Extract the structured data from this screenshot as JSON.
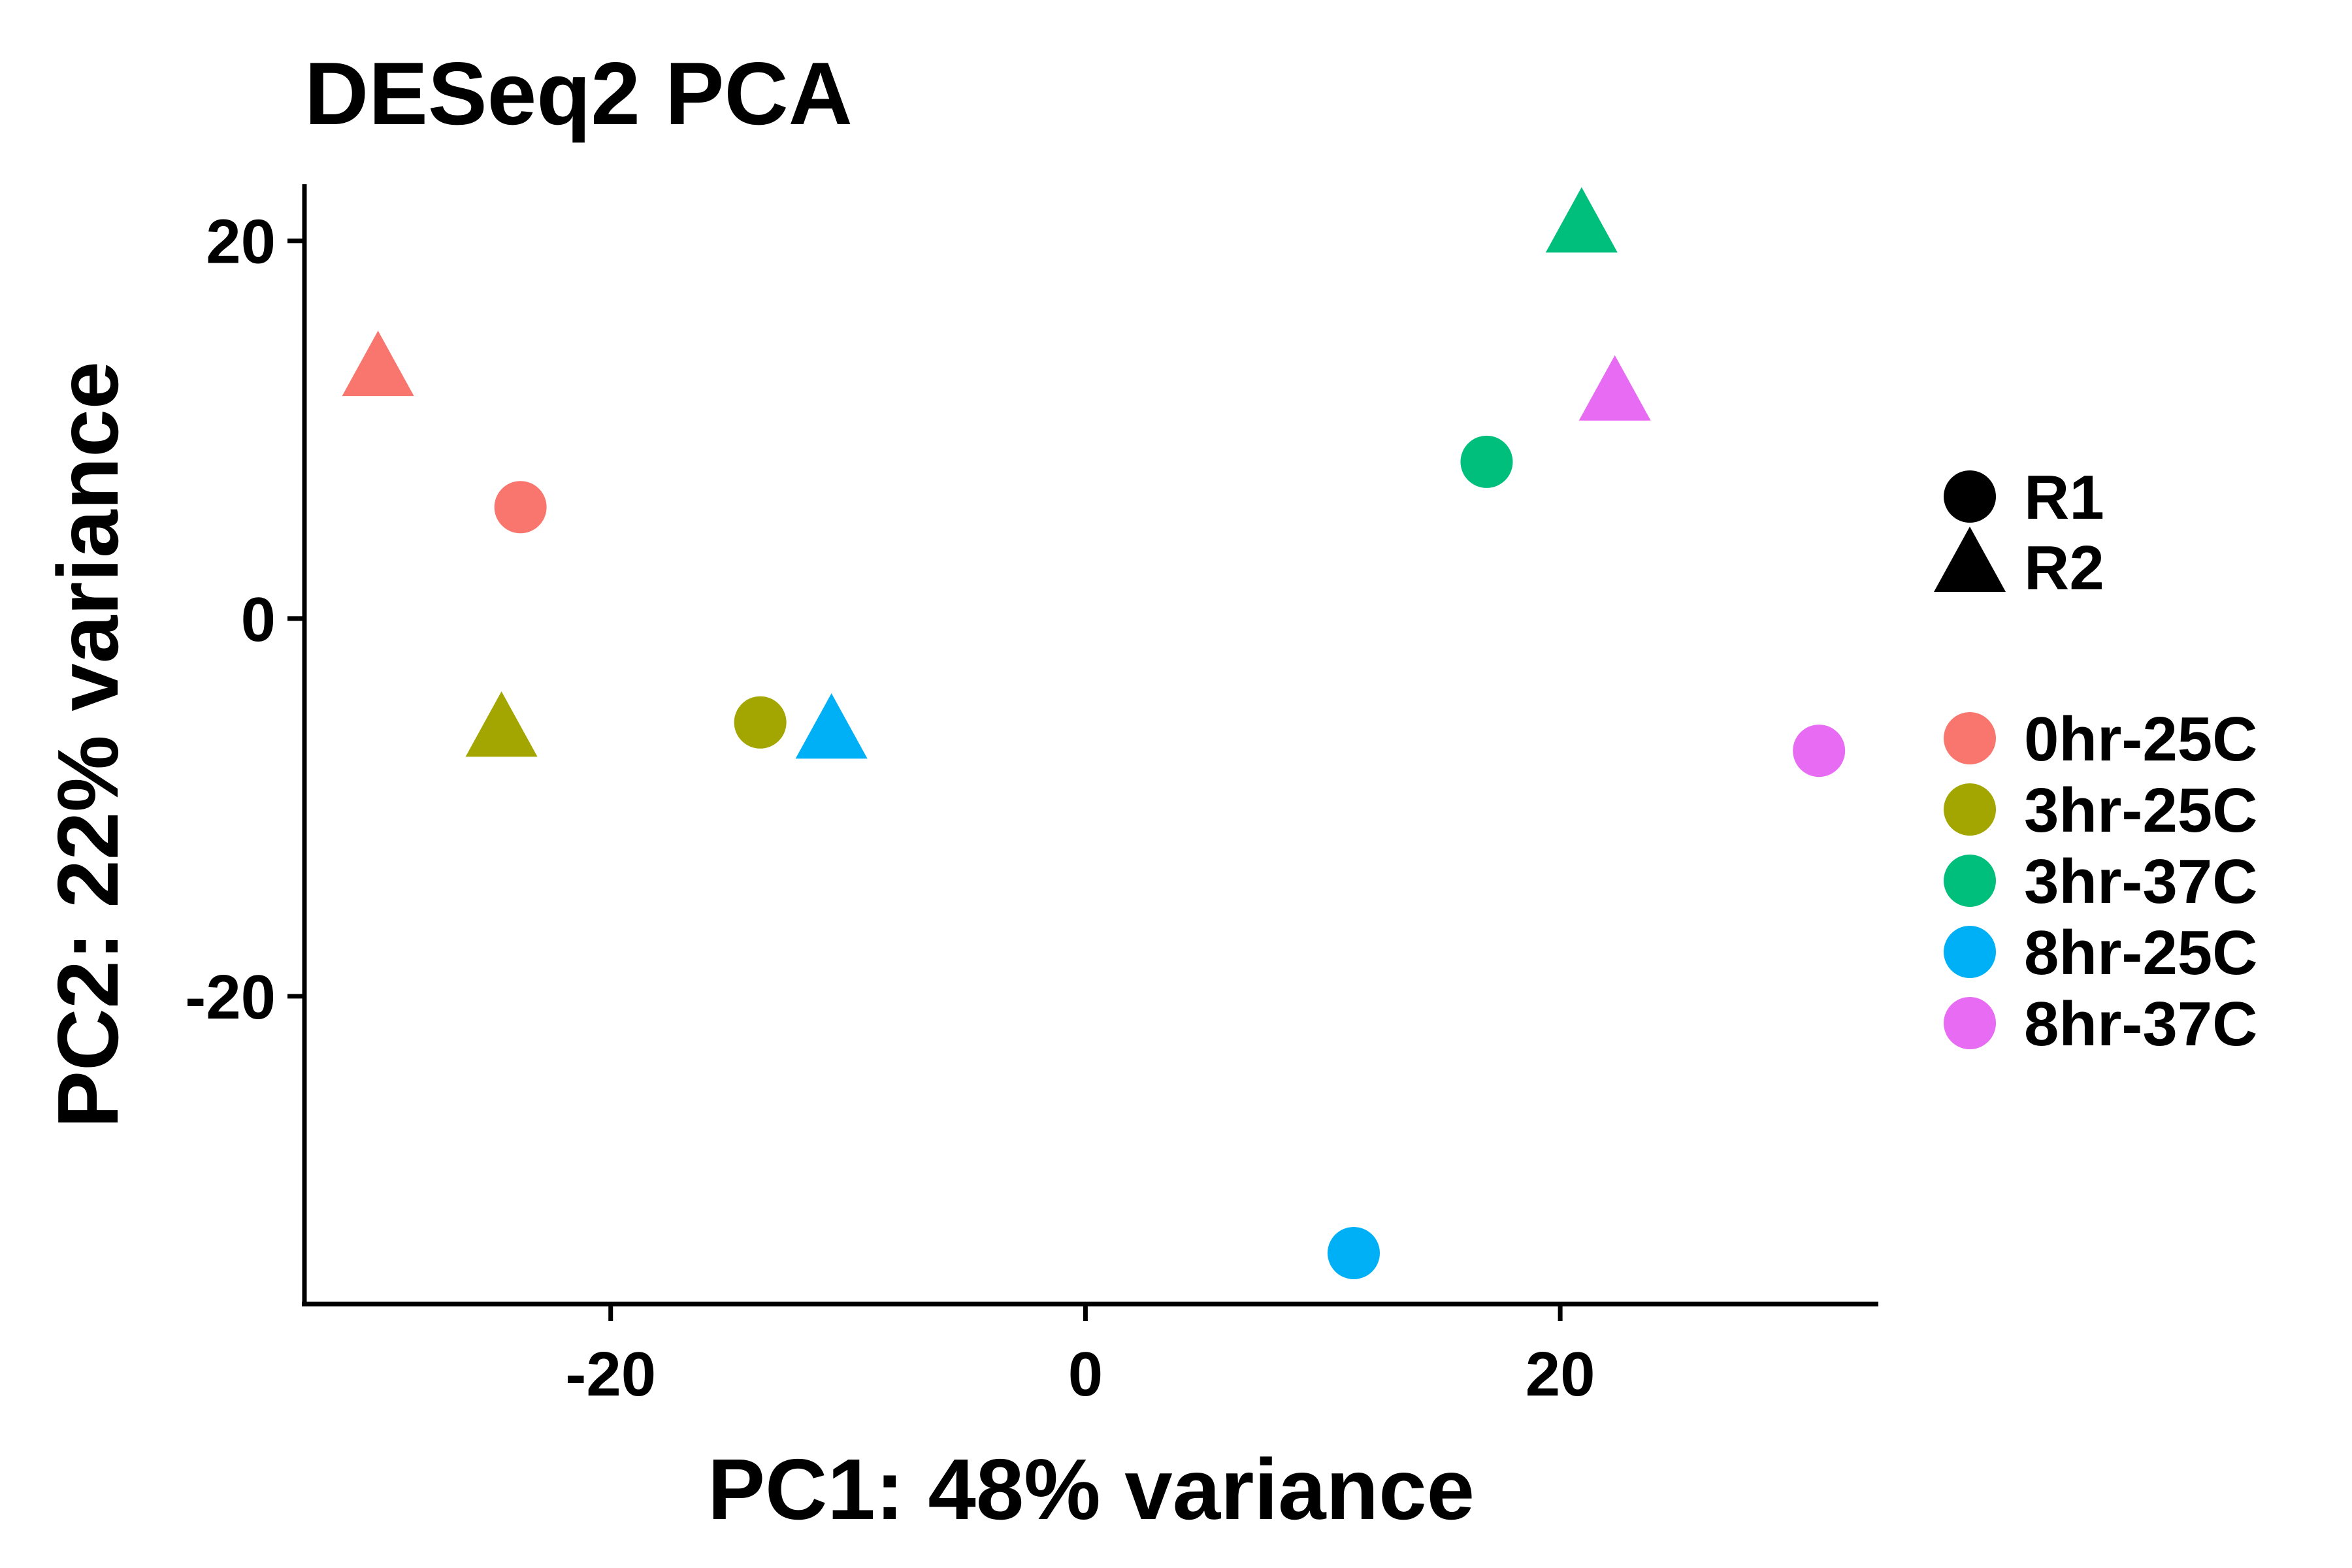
{
  "chart_data": {
    "type": "scatter",
    "title": "DESeq2 PCA",
    "xlabel": "PC1: 48% variance",
    "ylabel": "PC2: 22% variance",
    "xlim": [
      -32.9,
      33.4
    ],
    "ylim": [
      -36.3,
      23.0
    ],
    "x_ticks": [
      {
        "value": -20,
        "label": "-20"
      },
      {
        "value": 0,
        "label": "0"
      },
      {
        "value": 20,
        "label": "20"
      }
    ],
    "y_ticks": [
      {
        "value": 20,
        "label": "20"
      },
      {
        "value": 0,
        "label": "0"
      },
      {
        "value": -20,
        "label": "-20"
      }
    ],
    "grid": false,
    "shape_legend": [
      {
        "label": "R1",
        "shape": "circle"
      },
      {
        "label": "R2",
        "shape": "triangle"
      }
    ],
    "color_legend": [
      {
        "label": "0hr-25C",
        "color": "#F8766D"
      },
      {
        "label": "3hr-25C",
        "color": "#A3A500"
      },
      {
        "label": "3hr-37C",
        "color": "#00BF7D"
      },
      {
        "label": "8hr-25C",
        "color": "#00B0F6"
      },
      {
        "label": "8hr-37C",
        "color": "#E76BF3"
      }
    ],
    "legend_position": "right",
    "points": [
      {
        "group": "0hr-25C",
        "replicate": "R2",
        "x": -29.8,
        "y": 13.1
      },
      {
        "group": "0hr-25C",
        "replicate": "R1",
        "x": -23.8,
        "y": 5.9
      },
      {
        "group": "3hr-25C",
        "replicate": "R2",
        "x": -24.6,
        "y": -6.0
      },
      {
        "group": "3hr-25C",
        "replicate": "R1",
        "x": -13.7,
        "y": -5.5
      },
      {
        "group": "8hr-25C",
        "replicate": "R2",
        "x": -10.7,
        "y": -6.1
      },
      {
        "group": "3hr-37C",
        "replicate": "R1",
        "x": 16.9,
        "y": 8.3
      },
      {
        "group": "3hr-37C",
        "replicate": "R2",
        "x": 20.9,
        "y": 20.7
      },
      {
        "group": "8hr-37C",
        "replicate": "R2",
        "x": 22.3,
        "y": 11.8
      },
      {
        "group": "8hr-37C",
        "replicate": "R1",
        "x": 30.9,
        "y": -7.0
      },
      {
        "group": "8hr-25C",
        "replicate": "R1",
        "x": 11.3,
        "y": -33.6
      }
    ]
  },
  "colors": {
    "0hr-25C": "#F8766D",
    "3hr-25C": "#A3A500",
    "3hr-37C": "#00BF7D",
    "8hr-25C": "#00B0F6",
    "8hr-37C": "#E76BF3",
    "axis": "#000000"
  }
}
